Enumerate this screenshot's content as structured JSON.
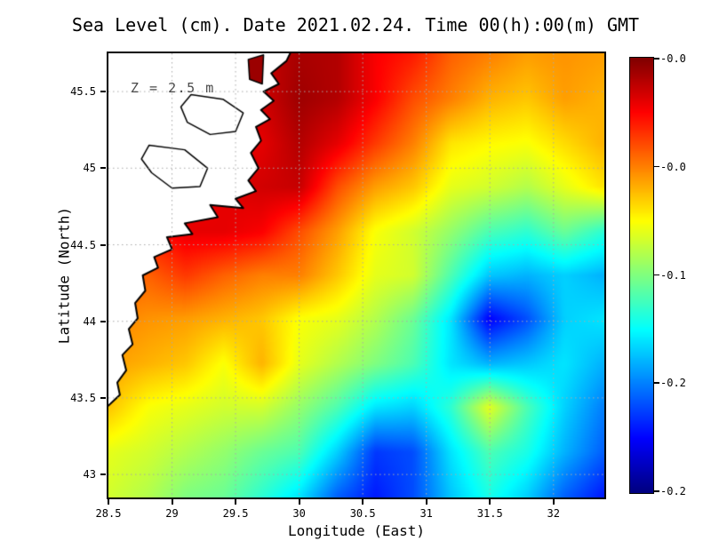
{
  "title": "Sea Level (cm). Date 2021.02.24. Time 00(h):00(m) GMT",
  "annotation": "Z = 2.5 m",
  "axes": {
    "xlabel": "Longitude (East)",
    "ylabel": "Latitude (North)",
    "x_tick_labels": [
      "28.5",
      "29",
      "29.5",
      "30",
      "30.5",
      "31",
      "31.5",
      "32"
    ],
    "y_tick_labels": [
      "43",
      "43.5",
      "44",
      "44.5",
      "45",
      "45.5"
    ]
  },
  "colorbar": {
    "tick_labels": [
      "-0.0",
      "-0.0",
      "-0.1",
      "-0.2",
      "-0.2"
    ],
    "orientation": "vertical",
    "top_color": "#800000",
    "bottom_color": "#000080"
  },
  "chart_data": {
    "type": "heatmap",
    "title": "Sea Level (cm). Date 2021.02.24. Time 00(h):00(m) GMT",
    "xlabel": "Longitude (East)",
    "ylabel": "Latitude (North)",
    "x_ticks": [
      28.5,
      29,
      29.5,
      30,
      30.5,
      31,
      31.5,
      32
    ],
    "y_ticks": [
      43,
      43.5,
      44,
      44.5,
      45,
      45.5
    ],
    "lon_range": [
      28.5,
      32.4
    ],
    "lat_range": [
      42.85,
      45.75
    ],
    "grid_on": true,
    "colormap": "jet",
    "colorbar_tick_labels": [
      "-0.0",
      "-0.0",
      "-0.1",
      "-0.2",
      "-0.2"
    ],
    "value_range_cm": [
      -0.2,
      0.0
    ],
    "annotation": "Z = 2.5 m",
    "grid_lons": [
      28.5,
      28.8,
      29.1,
      29.4,
      29.7,
      30.0,
      30.3,
      30.6,
      30.9,
      31.2,
      31.5,
      31.8,
      32.1,
      32.4
    ],
    "grid_lats": [
      45.75,
      45.46,
      45.17,
      44.88,
      44.59,
      44.3,
      44.01,
      43.72,
      43.43,
      43.14,
      42.85
    ],
    "grid_values_normalized": [
      [
        0.9,
        0.9,
        0.9,
        0.92,
        0.93,
        0.96,
        0.95,
        0.88,
        0.85,
        0.78,
        0.75,
        0.72,
        0.73,
        0.72
      ],
      [
        0.9,
        0.9,
        0.9,
        0.91,
        0.92,
        0.97,
        0.95,
        0.88,
        0.8,
        0.75,
        0.7,
        0.68,
        0.72,
        0.7
      ],
      [
        0.88,
        0.88,
        0.88,
        0.9,
        0.9,
        0.95,
        0.9,
        0.82,
        0.75,
        0.65,
        0.63,
        0.62,
        0.66,
        0.7
      ],
      [
        0.85,
        0.85,
        0.87,
        0.9,
        0.92,
        0.93,
        0.8,
        0.72,
        0.68,
        0.6,
        0.58,
        0.55,
        0.6,
        0.65
      ],
      [
        0.82,
        0.85,
        0.9,
        0.9,
        0.88,
        0.8,
        0.72,
        0.62,
        0.58,
        0.52,
        0.45,
        0.42,
        0.48,
        0.42
      ],
      [
        0.78,
        0.78,
        0.82,
        0.78,
        0.75,
        0.75,
        0.68,
        0.6,
        0.58,
        0.45,
        0.32,
        0.3,
        0.33,
        0.3
      ],
      [
        0.75,
        0.73,
        0.72,
        0.7,
        0.68,
        0.62,
        0.6,
        0.55,
        0.48,
        0.35,
        0.12,
        0.2,
        0.33,
        0.35
      ],
      [
        0.72,
        0.7,
        0.68,
        0.62,
        0.7,
        0.6,
        0.55,
        0.5,
        0.45,
        0.35,
        0.3,
        0.32,
        0.35,
        0.3
      ],
      [
        0.68,
        0.62,
        0.6,
        0.58,
        0.58,
        0.52,
        0.45,
        0.35,
        0.33,
        0.42,
        0.6,
        0.45,
        0.33,
        0.25
      ],
      [
        0.6,
        0.58,
        0.55,
        0.52,
        0.48,
        0.45,
        0.33,
        0.18,
        0.2,
        0.35,
        0.45,
        0.4,
        0.3,
        0.22
      ],
      [
        0.58,
        0.55,
        0.5,
        0.48,
        0.42,
        0.35,
        0.22,
        0.15,
        0.2,
        0.32,
        0.4,
        0.33,
        0.22,
        0.15
      ]
    ],
    "coastline_lonlat": [
      [
        29.97,
        45.82
      ],
      [
        29.9,
        45.7
      ],
      [
        29.78,
        45.62
      ],
      [
        29.84,
        45.55
      ],
      [
        29.72,
        45.5
      ],
      [
        29.8,
        45.44
      ],
      [
        29.7,
        45.38
      ],
      [
        29.77,
        45.32
      ],
      [
        29.66,
        45.27
      ],
      [
        29.7,
        45.18
      ],
      [
        29.62,
        45.1
      ],
      [
        29.68,
        45.0
      ],
      [
        29.6,
        44.92
      ],
      [
        29.66,
        44.85
      ],
      [
        29.5,
        44.8
      ],
      [
        29.56,
        44.74
      ],
      [
        29.3,
        44.76
      ],
      [
        29.36,
        44.68
      ],
      [
        29.1,
        44.64
      ],
      [
        29.16,
        44.57
      ],
      [
        28.96,
        44.55
      ],
      [
        29.0,
        44.47
      ],
      [
        28.86,
        44.42
      ],
      [
        28.89,
        44.35
      ],
      [
        28.77,
        44.3
      ],
      [
        28.79,
        44.2
      ],
      [
        28.71,
        44.12
      ],
      [
        28.73,
        44.02
      ],
      [
        28.66,
        43.95
      ],
      [
        28.69,
        43.85
      ],
      [
        28.61,
        43.78
      ],
      [
        28.64,
        43.68
      ],
      [
        28.57,
        43.6
      ],
      [
        28.59,
        43.52
      ],
      [
        28.5,
        43.45
      ],
      [
        28.4,
        43.4
      ],
      [
        28.4,
        45.82
      ]
    ],
    "lagoons_lonlat": [
      [
        [
          29.15,
          45.48
        ],
        [
          29.4,
          45.45
        ],
        [
          29.56,
          45.36
        ],
        [
          29.5,
          45.24
        ],
        [
          29.3,
          45.22
        ],
        [
          29.12,
          45.3
        ],
        [
          29.07,
          45.4
        ]
      ],
      [
        [
          28.82,
          45.15
        ],
        [
          29.1,
          45.12
        ],
        [
          29.28,
          45.0
        ],
        [
          29.22,
          44.88
        ],
        [
          29.0,
          44.87
        ],
        [
          28.84,
          44.97
        ],
        [
          28.76,
          45.06
        ]
      ]
    ],
    "red_land_patch_lonlat": [
      [
        29.6,
        45.71
      ],
      [
        29.72,
        45.74
      ],
      [
        29.71,
        45.55
      ],
      [
        29.61,
        45.58
      ]
    ],
    "red_land_patch_color": "#9b0000",
    "gridline_color": "#aaaaaa"
  }
}
